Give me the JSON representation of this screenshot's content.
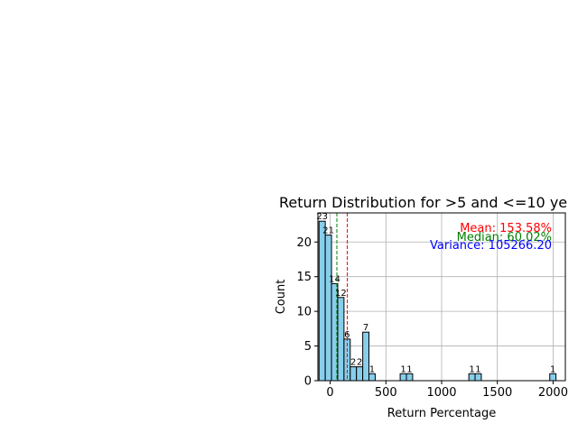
{
  "chart_data": {
    "type": "bar",
    "title": "Return Distribution for >5 and <=10 ye",
    "xlabel": "Return Percentage",
    "ylabel": "Count",
    "xlim": [
      -110,
      2110
    ],
    "ylim": [
      0,
      24.2
    ],
    "grid": true,
    "bin_width": 56,
    "bar_color": "#87ceeb",
    "bar_edge_color": "#000000",
    "x_ticks": [
      0,
      500,
      1000,
      1500,
      2000
    ],
    "y_ticks": [
      0,
      5,
      10,
      15,
      20
    ],
    "bins": [
      {
        "x0": -100,
        "count": 23
      },
      {
        "x0": -44,
        "count": 21
      },
      {
        "x0": 12,
        "count": 14
      },
      {
        "x0": 68,
        "count": 12
      },
      {
        "x0": 124,
        "count": 6
      },
      {
        "x0": 180,
        "count": 2
      },
      {
        "x0": 236,
        "count": 2
      },
      {
        "x0": 292,
        "count": 7
      },
      {
        "x0": 348,
        "count": 1
      },
      {
        "x0": 628,
        "count": 1
      },
      {
        "x0": 684,
        "count": 1
      },
      {
        "x0": 1244,
        "count": 1
      },
      {
        "x0": 1300,
        "count": 1
      },
      {
        "x0": 1970,
        "count": 1
      }
    ],
    "lines": [
      {
        "name": "mean",
        "x": 153.58,
        "color": "#ff0000"
      },
      {
        "name": "median",
        "x": 60.02,
        "color": "#008000"
      }
    ],
    "annotations": [
      {
        "text": "Mean: 153.58%",
        "color": "#ff0000"
      },
      {
        "text": "Median: 60.02%",
        "color": "#008000"
      },
      {
        "text": "Variance: 105266.20",
        "color": "#0000ff"
      }
    ]
  }
}
